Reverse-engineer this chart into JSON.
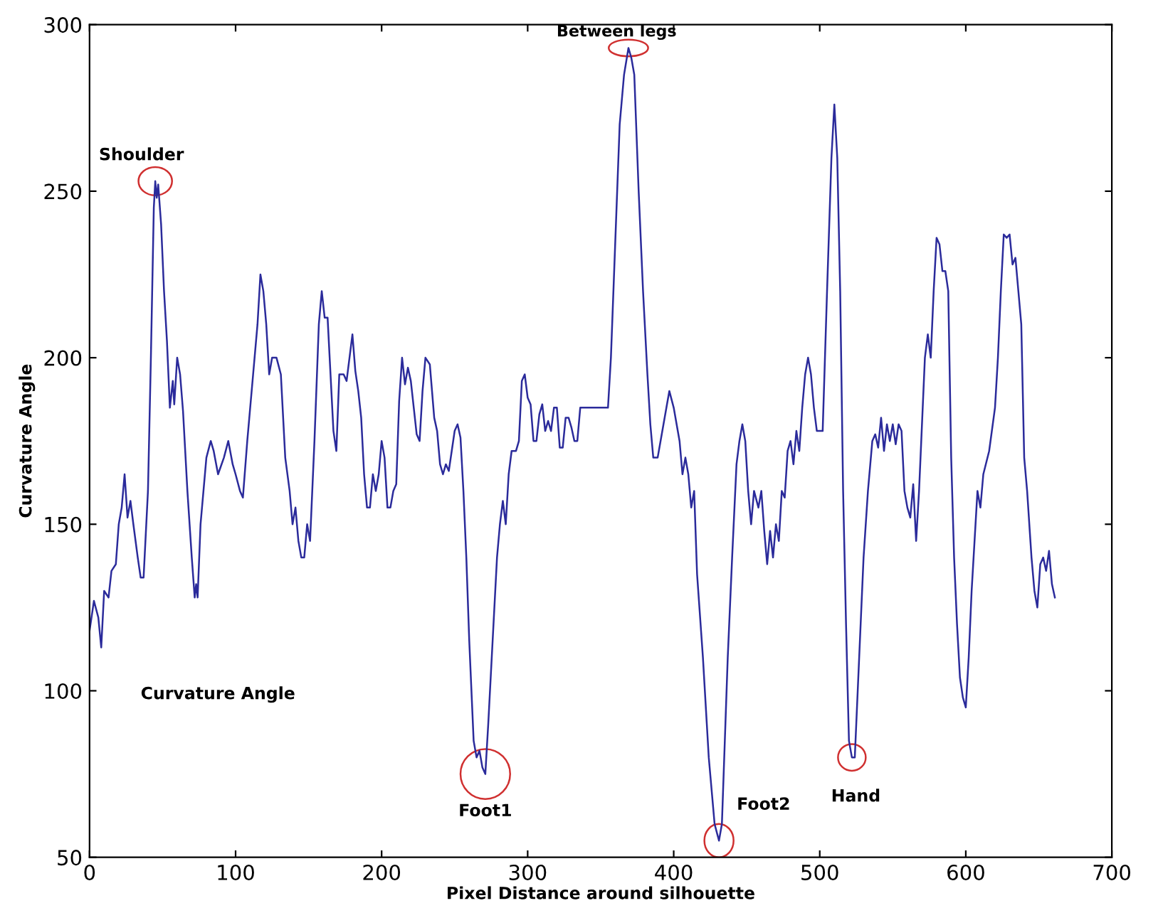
{
  "chart_data": {
    "type": "line",
    "xlabel": "Pixel Distance around silhouette",
    "ylabel": "Curvature Angle",
    "xlim": [
      0,
      700
    ],
    "ylim": [
      50,
      300
    ],
    "xticks": [
      0,
      100,
      200,
      300,
      400,
      500,
      600,
      700
    ],
    "yticks": [
      50,
      100,
      150,
      200,
      250,
      300
    ],
    "grid": false,
    "legend": false,
    "marker": "none",
    "line_style": "solid",
    "annotations": [
      "Curvature Angle",
      {
        "text": "Shoulder",
        "x": 45,
        "y": 253
      },
      {
        "text": "Between legs",
        "x": 369,
        "y": 293
      },
      {
        "text": "Foot1",
        "x": 271,
        "y": 75
      },
      {
        "text": "Foot2",
        "x": 431,
        "y": 55
      },
      {
        "text": "Hand",
        "x": 522,
        "y": 80
      }
    ],
    "series": [
      {
        "color": "#2b2b9b",
        "x": [
          0,
          3,
          6,
          8,
          10,
          13,
          15,
          18,
          20,
          22,
          24,
          26,
          28,
          30,
          33,
          35,
          37,
          40,
          42,
          44,
          45,
          46,
          47,
          49,
          51,
          53,
          55,
          57,
          58,
          60,
          62,
          64,
          67,
          70,
          72,
          73,
          74,
          76,
          80,
          83,
          85,
          88,
          92,
          95,
          98,
          100,
          103,
          105,
          108,
          112,
          115,
          117,
          119,
          121,
          123,
          125,
          128,
          131,
          134,
          137,
          139,
          141,
          143,
          145,
          147,
          149,
          151,
          154,
          157,
          159,
          161,
          163,
          165,
          167,
          169,
          171,
          174,
          176,
          178,
          180,
          182,
          184,
          186,
          188,
          190,
          192,
          194,
          196,
          198,
          200,
          202,
          204,
          206,
          208,
          210,
          212,
          214,
          216,
          218,
          220,
          222,
          224,
          226,
          228,
          230,
          233,
          236,
          238,
          240,
          242,
          244,
          246,
          248,
          250,
          252,
          254,
          256,
          258,
          260,
          263,
          265,
          267,
          269,
          271,
          273,
          276,
          279,
          281,
          283,
          285,
          287,
          289,
          292,
          294,
          296,
          298,
          300,
          302,
          304,
          306,
          308,
          310,
          312,
          314,
          316,
          318,
          320,
          322,
          324,
          326,
          328,
          330,
          332,
          334,
          336,
          340,
          350,
          355,
          357,
          360,
          363,
          366,
          369,
          371,
          373,
          376,
          379,
          382,
          384,
          386,
          389,
          391,
          393,
          395,
          397,
          400,
          402,
          404,
          406,
          408,
          410,
          412,
          414,
          416,
          420,
          424,
          428,
          431,
          433,
          435,
          437,
          440,
          443,
          445,
          447,
          449,
          451,
          453,
          455,
          458,
          460,
          462,
          464,
          466,
          468,
          470,
          472,
          474,
          476,
          478,
          480,
          482,
          484,
          486,
          488,
          490,
          492,
          494,
          496,
          498,
          502,
          505,
          508,
          510,
          512,
          514,
          516,
          518,
          520,
          522,
          524,
          526,
          530,
          533,
          536,
          538,
          540,
          542,
          544,
          546,
          548,
          550,
          552,
          554,
          556,
          558,
          560,
          562,
          564,
          566,
          568,
          570,
          572,
          574,
          576,
          578,
          580,
          582,
          584,
          586,
          588,
          590,
          592,
          594,
          596,
          598,
          600,
          602,
          604,
          606,
          608,
          610,
          612,
          616,
          620,
          622,
          624,
          626,
          628,
          630,
          632,
          634,
          636,
          638,
          640,
          642,
          645,
          647,
          649,
          651,
          653,
          655,
          657,
          659,
          661
        ],
        "values": [
          118,
          127,
          122,
          113,
          130,
          128,
          136,
          138,
          150,
          155,
          165,
          152,
          157,
          150,
          140,
          134,
          134,
          160,
          200,
          245,
          253,
          248,
          252,
          240,
          220,
          205,
          185,
          193,
          186,
          200,
          195,
          184,
          160,
          140,
          128,
          132,
          128,
          150,
          170,
          175,
          172,
          165,
          170,
          175,
          168,
          165,
          160,
          158,
          175,
          195,
          210,
          225,
          220,
          210,
          195,
          200,
          200,
          195,
          170,
          160,
          150,
          155,
          145,
          140,
          140,
          150,
          145,
          175,
          210,
          220,
          212,
          212,
          195,
          178,
          172,
          195,
          195,
          193,
          200,
          207,
          196,
          190,
          182,
          165,
          155,
          155,
          165,
          160,
          165,
          175,
          170,
          155,
          155,
          160,
          162,
          187,
          200,
          192,
          197,
          193,
          185,
          177,
          175,
          190,
          200,
          198,
          182,
          178,
          168,
          165,
          168,
          166,
          172,
          178,
          180,
          176,
          160,
          140,
          115,
          85,
          80,
          82,
          77,
          75,
          90,
          115,
          140,
          150,
          157,
          150,
          165,
          172,
          172,
          175,
          193,
          195,
          188,
          186,
          175,
          175,
          183,
          186,
          178,
          181,
          178,
          185,
          185,
          173,
          173,
          182,
          182,
          179,
          175,
          175,
          185,
          185,
          185,
          185,
          200,
          235,
          270,
          285,
          293,
          290,
          285,
          250,
          220,
          195,
          180,
          170,
          170,
          175,
          180,
          185,
          190,
          185,
          180,
          175,
          165,
          170,
          165,
          155,
          160,
          135,
          110,
          80,
          60,
          55,
          60,
          85,
          110,
          140,
          168,
          175,
          180,
          175,
          160,
          150,
          160,
          155,
          160,
          148,
          138,
          148,
          140,
          150,
          145,
          160,
          158,
          172,
          175,
          168,
          178,
          172,
          185,
          195,
          200,
          195,
          185,
          178,
          178,
          220,
          260,
          276,
          260,
          220,
          160,
          120,
          85,
          80,
          80,
          100,
          140,
          160,
          175,
          177,
          173,
          182,
          172,
          180,
          175,
          180,
          174,
          180,
          178,
          160,
          155,
          152,
          162,
          145,
          160,
          180,
          200,
          207,
          200,
          220,
          236,
          234,
          226,
          226,
          220,
          170,
          140,
          120,
          104,
          98,
          95,
          110,
          130,
          145,
          160,
          155,
          165,
          172,
          185,
          200,
          220,
          237,
          236,
          237,
          228,
          230,
          220,
          210,
          170,
          160,
          140,
          130,
          125,
          138,
          140,
          136,
          142,
          132,
          128
        ]
      }
    ]
  }
}
